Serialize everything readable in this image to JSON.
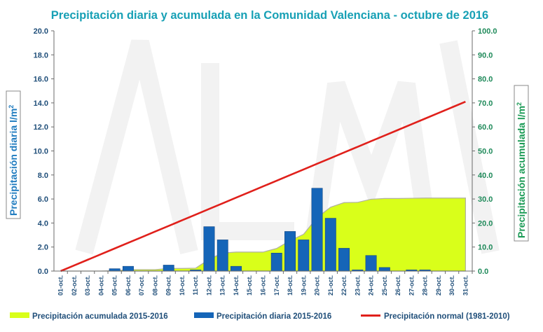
{
  "chart_data": {
    "type": "bar",
    "title": "Precipitación diaria y acumulada en la Comunidad Valenciana - octubre de 2016",
    "ylabel_left": "Precipitación diaria l/m",
    "ylabel_left_sup": "2",
    "ylabel_right": "Precipitación acumulada l/m",
    "ylabel_right_sup": "2",
    "ylim_left": [
      0,
      20
    ],
    "ylim_right": [
      0,
      100
    ],
    "yticks_left": [
      "0.0",
      "2.0",
      "4.0",
      "6.0",
      "8.0",
      "10.0",
      "12.0",
      "14.0",
      "16.0",
      "18.0",
      "20.0"
    ],
    "yticks_right": [
      "0.0",
      "10.0",
      "20.0",
      "30.0",
      "40.0",
      "50.0",
      "60.0",
      "70.0",
      "80.0",
      "90.0",
      "100.0"
    ],
    "categories": [
      "01-oct.",
      "02-oct.",
      "03-oct.",
      "04-oct.",
      "05-oct.",
      "06-oct.",
      "07-oct.",
      "08-oct.",
      "09-oct.",
      "10-oct.",
      "11-oct.",
      "12-oct.",
      "13-oct.",
      "14-oct.",
      "15-oct.",
      "16-oct.",
      "17-oct.",
      "18-oct.",
      "19-oct.",
      "20-oct.",
      "21-oct.",
      "22-oct.",
      "23-oct.",
      "24-oct.",
      "25-oct.",
      "26-oct.",
      "27-oct.",
      "28-oct.",
      "29-oct.",
      "30-oct.",
      "31-oct."
    ],
    "series": [
      {
        "name": "Precipitación acumulada 2015-2016",
        "type": "area",
        "axis": "right",
        "color": "#d9ff1a",
        "values": [
          0.0,
          0.0,
          0.0,
          0.0,
          0.2,
          0.6,
          0.6,
          0.6,
          1.1,
          1.1,
          1.2,
          4.9,
          7.5,
          7.9,
          7.9,
          7.9,
          9.4,
          12.7,
          15.3,
          22.2,
          26.6,
          28.5,
          28.6,
          29.9,
          30.2,
          30.2,
          30.3,
          30.4,
          30.4,
          30.4,
          30.4
        ]
      },
      {
        "name": "Precipitación diaria 2015-2016",
        "type": "bar",
        "axis": "left",
        "color": "#1565b8",
        "values": [
          0.0,
          0.0,
          0.0,
          0.0,
          0.2,
          0.4,
          0.0,
          0.0,
          0.5,
          0.0,
          0.1,
          3.7,
          2.6,
          0.4,
          0.0,
          0.0,
          1.5,
          3.3,
          2.6,
          6.9,
          4.4,
          1.9,
          0.1,
          1.3,
          0.3,
          0.0,
          0.1,
          0.1,
          0.0,
          0.0,
          0.0
        ]
      },
      {
        "name": "Precipitación normal (1981-2010)",
        "type": "line",
        "axis": "right",
        "color": "#e0201b",
        "values": [
          0.0,
          2.35,
          4.7,
          7.05,
          9.4,
          11.75,
          14.1,
          16.45,
          18.8,
          21.15,
          23.5,
          25.85,
          28.2,
          30.55,
          32.9,
          35.25,
          37.6,
          39.95,
          42.3,
          44.65,
          47.0,
          49.35,
          51.7,
          54.05,
          56.4,
          58.75,
          61.1,
          63.45,
          65.8,
          68.15,
          70.5
        ]
      }
    ],
    "grid": false,
    "legend": "bottom"
  },
  "colors": {
    "title": "#17a0b5",
    "left_axis": "#1f7bbf",
    "right_axis": "#1a9a55",
    "area": "#d9ff1a",
    "area_edge": "#b0b0a0",
    "bars": "#1565b8",
    "normal_line": "#e0201b"
  }
}
